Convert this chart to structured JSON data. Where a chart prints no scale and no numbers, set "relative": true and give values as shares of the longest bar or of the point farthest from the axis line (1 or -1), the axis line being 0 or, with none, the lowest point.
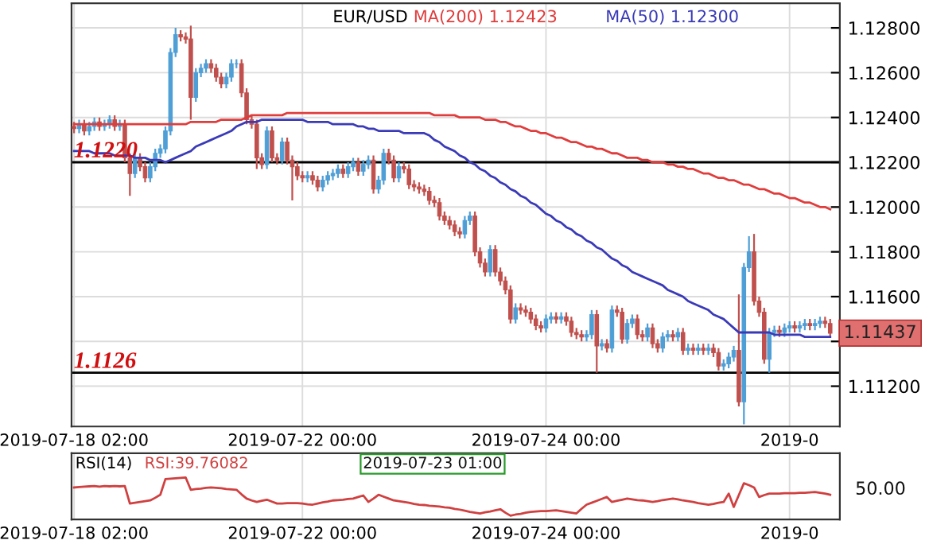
{
  "chart_data": [
    {
      "type": "candlestick",
      "title": "EUR/USD",
      "categories": [
        "2019-07-18 02:00",
        null,
        null,
        null,
        null,
        null,
        null,
        null,
        null,
        null,
        null,
        null,
        null,
        null,
        null,
        null,
        null,
        null,
        null,
        null,
        null,
        null,
        null,
        null,
        null,
        null,
        null,
        null,
        null,
        null,
        null,
        null,
        null,
        null,
        null,
        null,
        null,
        null,
        null,
        null,
        null,
        null,
        null,
        null,
        null,
        "2019-07-22 00:00",
        null,
        null,
        null,
        null,
        null,
        null,
        null,
        null,
        null,
        null,
        null,
        null,
        null,
        null,
        null,
        null,
        null,
        null,
        null,
        null,
        null,
        null,
        null,
        null,
        null,
        null,
        null,
        null,
        null,
        null,
        null,
        null,
        null,
        null,
        null,
        null,
        null,
        null,
        null,
        null,
        null,
        null,
        null,
        null,
        null,
        null,
        null,
        "2019-07-24 00:00",
        null,
        null,
        null,
        null,
        null,
        null,
        null,
        null,
        null,
        null,
        null,
        null,
        null,
        null,
        null,
        null,
        null,
        null,
        null,
        null,
        null,
        null,
        null,
        null,
        null,
        null,
        null,
        null,
        null,
        null,
        null,
        null,
        null,
        null,
        null,
        null,
        null,
        null,
        null,
        null,
        null,
        null,
        null,
        null,
        null,
        null,
        null,
        "2019-0",
        null,
        null,
        null,
        null,
        null,
        null,
        null,
        null
      ],
      "ohlc": [
        [
          1.1236,
          1.1238,
          1.1233,
          1.1235
        ],
        [
          1.1235,
          1.1239,
          1.1233,
          1.1237
        ],
        [
          1.1237,
          1.1239,
          1.1232,
          1.1234
        ],
        [
          1.1234,
          1.1238,
          1.1232,
          1.1236
        ],
        [
          1.1236,
          1.124,
          1.1234,
          1.1238
        ],
        [
          1.1238,
          1.124,
          1.1234,
          1.1236
        ],
        [
          1.1236,
          1.1239,
          1.1234,
          1.1237
        ],
        [
          1.1237,
          1.1241,
          1.1235,
          1.1239
        ],
        [
          1.1239,
          1.1241,
          1.1234,
          1.1236
        ],
        [
          1.1236,
          1.1239,
          1.1234,
          1.1237
        ],
        [
          1.1237,
          1.1239,
          1.122,
          1.1222
        ],
        [
          1.1222,
          1.1224,
          1.1205,
          1.1215
        ],
        [
          1.1215,
          1.1224,
          1.1213,
          1.1222
        ],
        [
          1.1222,
          1.1224,
          1.1216,
          1.1218
        ],
        [
          1.1218,
          1.122,
          1.1211,
          1.1213
        ],
        [
          1.1213,
          1.122,
          1.1211,
          1.1218
        ],
        [
          1.1218,
          1.1226,
          1.1216,
          1.1224
        ],
        [
          1.1224,
          1.1228,
          1.1222,
          1.1226
        ],
        [
          1.1226,
          1.1236,
          1.1224,
          1.1234
        ],
        [
          1.1234,
          1.1271,
          1.1232,
          1.1269
        ],
        [
          1.1269,
          1.128,
          1.1267,
          1.1277
        ],
        [
          1.1277,
          1.1279,
          1.1274,
          1.1276
        ],
        [
          1.1276,
          1.1278,
          1.1273,
          1.1275
        ],
        [
          1.1275,
          1.1281,
          1.1239,
          1.1249
        ],
        [
          1.1249,
          1.1262,
          1.1247,
          1.126
        ],
        [
          1.126,
          1.1264,
          1.1258,
          1.1262
        ],
        [
          1.1262,
          1.1266,
          1.126,
          1.1264
        ],
        [
          1.1264,
          1.1266,
          1.126,
          1.1262
        ],
        [
          1.1262,
          1.1264,
          1.1256,
          1.1258
        ],
        [
          1.1258,
          1.126,
          1.1253,
          1.1255
        ],
        [
          1.1255,
          1.126,
          1.1253,
          1.1258
        ],
        [
          1.1258,
          1.1266,
          1.1256,
          1.1264
        ],
        [
          1.1264,
          1.1266,
          1.1262,
          1.1264
        ],
        [
          1.1264,
          1.1266,
          1.1249,
          1.1251
        ],
        [
          1.1251,
          1.1253,
          1.1237,
          1.1239
        ],
        [
          1.1239,
          1.1241,
          1.1235,
          1.1237
        ],
        [
          1.1237,
          1.1239,
          1.1217,
          1.1222
        ],
        [
          1.1222,
          1.1224,
          1.1217,
          1.1219
        ],
        [
          1.1219,
          1.1236,
          1.1217,
          1.1234
        ],
        [
          1.1234,
          1.1236,
          1.122,
          1.1222
        ],
        [
          1.1222,
          1.1224,
          1.1219,
          1.1221
        ],
        [
          1.1221,
          1.1231,
          1.1219,
          1.1229
        ],
        [
          1.1229,
          1.1231,
          1.1219,
          1.1221
        ],
        [
          1.1221,
          1.1223,
          1.1203,
          1.1218
        ],
        [
          1.1218,
          1.122,
          1.1212,
          1.1214
        ],
        [
          1.1214,
          1.1216,
          1.1211,
          1.1213
        ],
        [
          1.1213,
          1.1216,
          1.1211,
          1.1214
        ],
        [
          1.1214,
          1.1216,
          1.121,
          1.1212
        ],
        [
          1.1212,
          1.1214,
          1.1207,
          1.1209
        ],
        [
          1.1209,
          1.1214,
          1.1207,
          1.1212
        ],
        [
          1.1212,
          1.1216,
          1.121,
          1.1214
        ],
        [
          1.1214,
          1.1217,
          1.1212,
          1.1215
        ],
        [
          1.1215,
          1.1219,
          1.1213,
          1.1217
        ],
        [
          1.1217,
          1.1219,
          1.1213,
          1.1215
        ],
        [
          1.1215,
          1.122,
          1.1213,
          1.1218
        ],
        [
          1.1218,
          1.1222,
          1.1216,
          1.122
        ],
        [
          1.122,
          1.1222,
          1.1214,
          1.1216
        ],
        [
          1.1216,
          1.1221,
          1.1214,
          1.1219
        ],
        [
          1.1219,
          1.1223,
          1.1217,
          1.1221
        ],
        [
          1.1221,
          1.1223,
          1.1206,
          1.1208
        ],
        [
          1.1208,
          1.1214,
          1.1206,
          1.1212
        ],
        [
          1.1212,
          1.1226,
          1.121,
          1.1224
        ],
        [
          1.1224,
          1.1226,
          1.1219,
          1.1221
        ],
        [
          1.1221,
          1.1223,
          1.1211,
          1.1213
        ],
        [
          1.1213,
          1.122,
          1.1211,
          1.1218
        ],
        [
          1.1218,
          1.122,
          1.1215,
          1.1217
        ],
        [
          1.1217,
          1.1219,
          1.1208,
          1.121
        ],
        [
          1.121,
          1.1212,
          1.1207,
          1.1209
        ],
        [
          1.1209,
          1.1211,
          1.1206,
          1.1208
        ],
        [
          1.1208,
          1.121,
          1.1205,
          1.1207
        ],
        [
          1.1207,
          1.1209,
          1.1201,
          1.1203
        ],
        [
          1.1203,
          1.1205,
          1.12,
          1.1202
        ],
        [
          1.1202,
          1.1204,
          1.1194,
          1.1196
        ],
        [
          1.1196,
          1.1198,
          1.1192,
          1.1194
        ],
        [
          1.1194,
          1.1196,
          1.119,
          1.1192
        ],
        [
          1.1192,
          1.1194,
          1.1187,
          1.1189
        ],
        [
          1.1189,
          1.1191,
          1.1186,
          1.1188
        ],
        [
          1.1188,
          1.1196,
          1.1186,
          1.1194
        ],
        [
          1.1194,
          1.1198,
          1.1192,
          1.1196
        ],
        [
          1.1196,
          1.1198,
          1.1178,
          1.118
        ],
        [
          1.118,
          1.1182,
          1.1173,
          1.1175
        ],
        [
          1.1175,
          1.1177,
          1.1169,
          1.1171
        ],
        [
          1.1171,
          1.1183,
          1.1169,
          1.1181
        ],
        [
          1.1181,
          1.1183,
          1.1169,
          1.1171
        ],
        [
          1.1171,
          1.1173,
          1.1165,
          1.1167
        ],
        [
          1.1167,
          1.1169,
          1.1161,
          1.1163
        ],
        [
          1.1163,
          1.1165,
          1.1148,
          1.115
        ],
        [
          1.115,
          1.1157,
          1.1148,
          1.1155
        ],
        [
          1.1155,
          1.1157,
          1.1152,
          1.1154
        ],
        [
          1.1154,
          1.1156,
          1.1151,
          1.1153
        ],
        [
          1.1153,
          1.1155,
          1.1148,
          1.115
        ],
        [
          1.115,
          1.1152,
          1.1145,
          1.1147
        ],
        [
          1.1147,
          1.1149,
          1.1144,
          1.1146
        ],
        [
          1.1146,
          1.1152,
          1.1144,
          1.115
        ],
        [
          1.115,
          1.1153,
          1.1148,
          1.1151
        ],
        [
          1.1151,
          1.1153,
          1.1148,
          1.115
        ],
        [
          1.115,
          1.1153,
          1.1148,
          1.1151
        ],
        [
          1.1151,
          1.1153,
          1.1147,
          1.1149
        ],
        [
          1.1149,
          1.1151,
          1.1142,
          1.1144
        ],
        [
          1.1144,
          1.1146,
          1.1141,
          1.1143
        ],
        [
          1.1143,
          1.1145,
          1.114,
          1.1142
        ],
        [
          1.1142,
          1.1145,
          1.114,
          1.1143
        ],
        [
          1.1143,
          1.1154,
          1.1141,
          1.1152
        ],
        [
          1.1152,
          1.1154,
          1.1126,
          1.1138
        ],
        [
          1.1138,
          1.1141,
          1.1136,
          1.1139
        ],
        [
          1.1139,
          1.1141,
          1.1135,
          1.1137
        ],
        [
          1.1137,
          1.1156,
          1.1135,
          1.1154
        ],
        [
          1.1154,
          1.1156,
          1.1151,
          1.1153
        ],
        [
          1.1153,
          1.1155,
          1.1139,
          1.1141
        ],
        [
          1.1141,
          1.115,
          1.1139,
          1.1148
        ],
        [
          1.1148,
          1.1152,
          1.1146,
          1.115
        ],
        [
          1.115,
          1.1152,
          1.1141,
          1.1143
        ],
        [
          1.1143,
          1.1145,
          1.114,
          1.1142
        ],
        [
          1.1142,
          1.1148,
          1.114,
          1.1146
        ],
        [
          1.1146,
          1.1148,
          1.1137,
          1.1139
        ],
        [
          1.1139,
          1.1141,
          1.1135,
          1.1137
        ],
        [
          1.1137,
          1.1144,
          1.1135,
          1.1142
        ],
        [
          1.1142,
          1.1145,
          1.114,
          1.1143
        ],
        [
          1.1143,
          1.1145,
          1.114,
          1.1142
        ],
        [
          1.1142,
          1.1146,
          1.114,
          1.1144
        ],
        [
          1.1144,
          1.1146,
          1.1134,
          1.1136
        ],
        [
          1.1136,
          1.1139,
          1.1134,
          1.1137
        ],
        [
          1.1137,
          1.1139,
          1.1134,
          1.1136
        ],
        [
          1.1136,
          1.1139,
          1.1134,
          1.1137
        ],
        [
          1.1137,
          1.1139,
          1.1134,
          1.1136
        ],
        [
          1.1136,
          1.1139,
          1.1134,
          1.1137
        ],
        [
          1.1137,
          1.1139,
          1.1133,
          1.1135
        ],
        [
          1.1135,
          1.1137,
          1.1127,
          1.1129
        ],
        [
          1.1129,
          1.1132,
          1.1127,
          1.113
        ],
        [
          1.113,
          1.1135,
          1.1128,
          1.1133
        ],
        [
          1.1133,
          1.1138,
          1.1131,
          1.1136
        ],
        [
          1.1136,
          1.1161,
          1.1111,
          1.1113
        ],
        [
          1.1113,
          1.1175,
          1.1103,
          1.1173
        ],
        [
          1.1173,
          1.1187,
          1.1171,
          1.118
        ],
        [
          1.118,
          1.1188,
          1.1156,
          1.1158
        ],
        [
          1.1158,
          1.116,
          1.1151,
          1.1153
        ],
        [
          1.1153,
          1.1155,
          1.113,
          1.1132
        ],
        [
          1.1132,
          1.1146,
          1.1126,
          1.1144
        ],
        [
          1.1144,
          1.1147,
          1.1142,
          1.1145
        ],
        [
          1.1145,
          1.1147,
          1.1142,
          1.1144
        ],
        [
          1.1144,
          1.1148,
          1.1142,
          1.1146
        ],
        [
          1.1146,
          1.1149,
          1.1144,
          1.1147
        ],
        [
          1.1147,
          1.1149,
          1.1144,
          1.1146
        ],
        [
          1.1146,
          1.1149,
          1.1144,
          1.1147
        ],
        [
          1.1147,
          1.115,
          1.1145,
          1.1148
        ],
        [
          1.1148,
          1.115,
          1.1145,
          1.1147
        ],
        [
          1.1147,
          1.115,
          1.1145,
          1.1148
        ],
        [
          1.1148,
          1.1151,
          1.1146,
          1.1149
        ],
        [
          1.1149,
          1.1151,
          1.1146,
          1.1148
        ],
        [
          1.1148,
          1.115,
          1.11417,
          1.11437
        ]
      ],
      "colors": [
        "#c0504d",
        "#4f9fd6",
        "#c0504d",
        "#4f9fd6",
        "#4f9fd6",
        "#c0504d",
        "#4f9fd6",
        "#4f9fd6",
        "#c0504d",
        "#4f9fd6",
        "#c0504d",
        "#c0504d",
        "#4f9fd6",
        "#c0504d",
        "#c0504d",
        "#4f9fd6",
        "#4f9fd6",
        "#4f9fd6",
        "#4f9fd6",
        "#4f9fd6",
        "#4f9fd6",
        "#c0504d",
        "#c0504d",
        "#c0504d",
        "#4f9fd6",
        "#4f9fd6",
        "#4f9fd6",
        "#c0504d",
        "#c0504d",
        "#c0504d",
        "#4f9fd6",
        "#4f9fd6",
        "#4f9fd6",
        "#c0504d",
        "#c0504d",
        "#c0504d",
        "#c0504d",
        "#c0504d",
        "#4f9fd6",
        "#c0504d",
        "#c0504d",
        "#4f9fd6",
        "#c0504d",
        "#c0504d",
        "#c0504d",
        "#c0504d",
        "#4f9fd6",
        "#c0504d",
        "#c0504d",
        "#4f9fd6",
        "#4f9fd6",
        "#4f9fd6",
        "#4f9fd6",
        "#c0504d",
        "#4f9fd6",
        "#4f9fd6",
        "#c0504d",
        "#4f9fd6",
        "#4f9fd6",
        "#c0504d",
        "#4f9fd6",
        "#4f9fd6",
        "#c0504d",
        "#c0504d",
        "#4f9fd6",
        "#c0504d",
        "#c0504d",
        "#c0504d",
        "#c0504d",
        "#c0504d",
        "#c0504d",
        "#c0504d",
        "#c0504d",
        "#c0504d",
        "#c0504d",
        "#c0504d",
        "#c0504d",
        "#4f9fd6",
        "#4f9fd6",
        "#c0504d",
        "#c0504d",
        "#c0504d",
        "#4f9fd6",
        "#c0504d",
        "#c0504d",
        "#c0504d",
        "#c0504d",
        "#4f9fd6",
        "#c0504d",
        "#c0504d",
        "#c0504d",
        "#c0504d",
        "#c0504d",
        "#4f9fd6",
        "#4f9fd6",
        "#c0504d",
        "#4f9fd6",
        "#c0504d",
        "#c0504d",
        "#c0504d",
        "#c0504d",
        "#4f9fd6",
        "#4f9fd6",
        "#c0504d",
        "#4f9fd6",
        "#c0504d",
        "#4f9fd6",
        "#c0504d",
        "#c0504d",
        "#4f9fd6",
        "#4f9fd6",
        "#c0504d",
        "#c0504d",
        "#4f9fd6",
        "#c0504d",
        "#c0504d",
        "#4f9fd6",
        "#4f9fd6",
        "#c0504d",
        "#4f9fd6",
        "#c0504d",
        "#4f9fd6",
        "#c0504d",
        "#4f9fd6",
        "#c0504d",
        "#4f9fd6",
        "#c0504d",
        "#c0504d",
        "#4f9fd6",
        "#4f9fd6",
        "#4f9fd6",
        "#c0504d",
        "#4f9fd6",
        "#4f9fd6",
        "#c0504d",
        "#c0504d",
        "#c0504d",
        "#4f9fd6",
        "#4f9fd6",
        "#c0504d",
        "#4f9fd6",
        "#4f9fd6",
        "#c0504d",
        "#4f9fd6",
        "#4f9fd6",
        "#c0504d",
        "#4f9fd6",
        "#4f9fd6",
        "#c0504d",
        "#c0504d"
      ],
      "series": [
        {
          "type": "line",
          "name": "MA(200) 1.12423",
          "color": "#e03c3c",
          "values": [
            1.1237,
            1.1237,
            1.1237,
            1.1237,
            1.1237,
            1.1237,
            1.1237,
            1.1237,
            1.1237,
            1.1237,
            1.1237,
            1.1237,
            1.1237,
            1.1237,
            1.1237,
            1.1237,
            1.1237,
            1.1237,
            1.1237,
            1.1237,
            1.1237,
            1.1237,
            1.1237,
            1.1238,
            1.1238,
            1.1238,
            1.1238,
            1.1238,
            1.1238,
            1.1239,
            1.1239,
            1.1239,
            1.1239,
            1.1239,
            1.124,
            1.1241,
            1.1241,
            1.1241,
            1.1241,
            1.1241,
            1.1241,
            1.1241,
            1.1242,
            1.1242,
            1.1242,
            1.1242,
            1.1242,
            1.1242,
            1.1242,
            1.1242,
            1.1242,
            1.1242,
            1.1242,
            1.1242,
            1.1242,
            1.1242,
            1.1242,
            1.1242,
            1.1242,
            1.1242,
            1.1242,
            1.1242,
            1.1242,
            1.1242,
            1.1242,
            1.1242,
            1.1242,
            1.1242,
            1.1242,
            1.1242,
            1.1242,
            1.1241,
            1.1241,
            1.1241,
            1.1241,
            1.1241,
            1.124,
            1.124,
            1.124,
            1.124,
            1.124,
            1.1239,
            1.1239,
            1.1239,
            1.1238,
            1.1238,
            1.1237,
            1.1236,
            1.1236,
            1.1235,
            1.1234,
            1.1234,
            1.1233,
            1.1233,
            1.1232,
            1.1231,
            1.1231,
            1.123,
            1.1229,
            1.1229,
            1.1228,
            1.1227,
            1.1227,
            1.1226,
            1.1226,
            1.1225,
            1.1224,
            1.1224,
            1.1223,
            1.1222,
            1.1222,
            1.1222,
            1.1221,
            1.1221,
            1.122,
            1.122,
            1.122,
            1.1219,
            1.1219,
            1.1218,
            1.1218,
            1.1217,
            1.1217,
            1.1216,
            1.1215,
            1.1215,
            1.1214,
            1.1213,
            1.1213,
            1.1212,
            1.1212,
            1.1211,
            1.121,
            1.121,
            1.1209,
            1.1208,
            1.1208,
            1.1207,
            1.1206,
            1.1206,
            1.1205,
            1.1204,
            1.1204,
            1.1203,
            1.1202,
            1.1202,
            1.1201,
            1.12,
            1.12,
            1.1199
          ]
        },
        {
          "type": "line",
          "name": "MA(50) 1.12300",
          "color": "#3a3ab8",
          "values": [
            1.1225,
            1.1225,
            1.1225,
            1.1225,
            1.1224,
            1.1224,
            1.1224,
            1.1224,
            1.1223,
            1.1223,
            1.1223,
            1.1223,
            1.1222,
            1.1222,
            1.1222,
            1.1221,
            1.1221,
            1.1221,
            1.122,
            1.1221,
            1.1222,
            1.1223,
            1.1224,
            1.1225,
            1.1227,
            1.1228,
            1.1229,
            1.123,
            1.1231,
            1.1232,
            1.1233,
            1.1234,
            1.1236,
            1.1237,
            1.1238,
            1.1238,
            1.1238,
            1.1239,
            1.1239,
            1.1239,
            1.1239,
            1.1239,
            1.1239,
            1.1239,
            1.1239,
            1.1239,
            1.1238,
            1.1238,
            1.1238,
            1.1238,
            1.1238,
            1.1237,
            1.1237,
            1.1237,
            1.1237,
            1.1237,
            1.1236,
            1.1236,
            1.1235,
            1.1235,
            1.1234,
            1.1234,
            1.1234,
            1.1234,
            1.1234,
            1.1233,
            1.1233,
            1.1233,
            1.1233,
            1.1233,
            1.1232,
            1.123,
            1.1229,
            1.1227,
            1.1226,
            1.1225,
            1.1223,
            1.1222,
            1.122,
            1.1219,
            1.1217,
            1.1216,
            1.1214,
            1.1213,
            1.1211,
            1.121,
            1.1208,
            1.1207,
            1.1205,
            1.1204,
            1.1202,
            1.1201,
            1.1199,
            1.1197,
            1.1196,
            1.1194,
            1.1193,
            1.1191,
            1.119,
            1.1188,
            1.1187,
            1.1185,
            1.1184,
            1.1182,
            1.1181,
            1.1179,
            1.1177,
            1.1176,
            1.1174,
            1.1173,
            1.1171,
            1.117,
            1.1169,
            1.1168,
            1.1167,
            1.1166,
            1.1165,
            1.1163,
            1.1162,
            1.1161,
            1.116,
            1.1158,
            1.1157,
            1.1156,
            1.1155,
            1.1154,
            1.1152,
            1.1151,
            1.115,
            1.1148,
            1.1146,
            1.1144,
            1.1144,
            1.1144,
            1.1144,
            1.1144,
            1.1144,
            1.1144,
            1.1143,
            1.1143,
            1.1143,
            1.1143,
            1.1143,
            1.1143,
            1.1142,
            1.1142,
            1.1142,
            1.1142,
            1.1142,
            1.1142
          ]
        }
      ],
      "ylim": [
        1.1102,
        1.1291
      ],
      "yticks": [
        {
          "value": 1.112,
          "label": "1.11200"
        },
        {
          "value": 1.114,
          "label": null
        },
        {
          "value": 1.116,
          "label": "1.11600"
        },
        {
          "value": 1.118,
          "label": "1.11800"
        },
        {
          "value": 1.12,
          "label": "1.12000"
        },
        {
          "value": 1.122,
          "label": "1.12200"
        },
        {
          "value": 1.124,
          "label": "1.12400"
        },
        {
          "value": 1.126,
          "label": "1.12600"
        },
        {
          "value": 1.128,
          "label": "1.12800"
        }
      ],
      "ref_lines": [
        {
          "axis": "y",
          "value": 1.122,
          "label": "1.1220",
          "color": "#000000"
        },
        {
          "axis": "y",
          "value": 1.1126,
          "label": "1.1126",
          "color": "#000000"
        }
      ],
      "annotations": [
        "1.11437"
      ],
      "grid": true,
      "legend": "top"
    },
    {
      "type": "line",
      "title": "RSI(14)",
      "relative": true,
      "categories": [
        "2019-07-18 02:00",
        null,
        null,
        null,
        null,
        null,
        null,
        null,
        null,
        null,
        null,
        null,
        null,
        null,
        null,
        null,
        null,
        null,
        null,
        null,
        null,
        null,
        null,
        null,
        null,
        null,
        null,
        null,
        null,
        null,
        null,
        null,
        null,
        null,
        null,
        null,
        null,
        null,
        null,
        null,
        null,
        null,
        null,
        null,
        null,
        "2019-07-22 00:00",
        null,
        null,
        null,
        null,
        null,
        null,
        null,
        null,
        null,
        null,
        null,
        null,
        null,
        null,
        null,
        null,
        null,
        null,
        null,
        null,
        null,
        null,
        null,
        null,
        null,
        null,
        null,
        null,
        null,
        null,
        null,
        null,
        null,
        null,
        null,
        null,
        null,
        null,
        null,
        null,
        null,
        null,
        null,
        null,
        null,
        null,
        null,
        "2019-07-24 00:00",
        null,
        null,
        null,
        null,
        null,
        null,
        null,
        null,
        null,
        null,
        null,
        null,
        null,
        null,
        null,
        null,
        null,
        null,
        null,
        null,
        null,
        null,
        null,
        null,
        null,
        null,
        null,
        null,
        null,
        null,
        null,
        null,
        null,
        null,
        null,
        null,
        null,
        null,
        null,
        null,
        null,
        null,
        null,
        null,
        null,
        null,
        null,
        "2019-0",
        null,
        null,
        null,
        null,
        null,
        null,
        null,
        null
      ],
      "series": [
        {
          "name": "RSI:39.76082",
          "color": "#d04040",
          "values": [
            0.74,
            0.75,
            0.76,
            0.77,
            0.78,
            0.76,
            0.78,
            0.77,
            0.78,
            0.77,
            0.78,
            0.32,
            0.34,
            0.36,
            0.38,
            0.4,
            0.47,
            0.55,
            0.96,
            0.97,
            0.98,
            0.99,
            1,
            0.68,
            0.7,
            0.71,
            0.73,
            0.74,
            0.73,
            0.72,
            0.7,
            0.69,
            0.68,
            0.56,
            0.45,
            0.4,
            0.36,
            0.39,
            0.42,
            0.37,
            0.32,
            0.32,
            0.33,
            0.33,
            0.33,
            0.32,
            0.3,
            0.29,
            0.32,
            0.35,
            0.37,
            0.4,
            0.41,
            0.42,
            0.44,
            0.45,
            0.49,
            0.53,
            0.36,
            0.45,
            0.55,
            0.5,
            0.45,
            0.4,
            0.38,
            0.36,
            0.34,
            0.31,
            0.29,
            0.28,
            0.26,
            0.25,
            0.24,
            0.22,
            0.21,
            0.18,
            0.16,
            0.13,
            0.1,
            0.08,
            0.06,
            0.09,
            0.11,
            0.14,
            0.17,
            0.08,
            0,
            0.03,
            0.05,
            0.08,
            0.1,
            0.11,
            0.12,
            0.12,
            0.13,
            0.14,
            0.12,
            0.1,
            0.08,
            0.06,
            0.18,
            0.29,
            0.34,
            0.39,
            0.44,
            0.49,
            0.36,
            0.39,
            0.42,
            0.45,
            0.43,
            0.41,
            0.4,
            0.38,
            0.36,
            0.38,
            0.41,
            0.43,
            0.45,
            0.43,
            0.4,
            0.38,
            0.36,
            0.33,
            0.31,
            0.29,
            0.31,
            0.34,
            0.36,
            0.58,
            0.23,
            0.54,
            0.85,
            0.8,
            0.74,
            0.49,
            0.54,
            0.58,
            0.58,
            0.58,
            0.59,
            0.59,
            0.59,
            0.6,
            0.6,
            0.61,
            0.62,
            0.6,
            0.58,
            0.55
          ]
        }
      ],
      "annotations": [
        "50.00",
        "2019-07-23 01:00"
      ],
      "grid": "x",
      "legend": "top left"
    }
  ]
}
